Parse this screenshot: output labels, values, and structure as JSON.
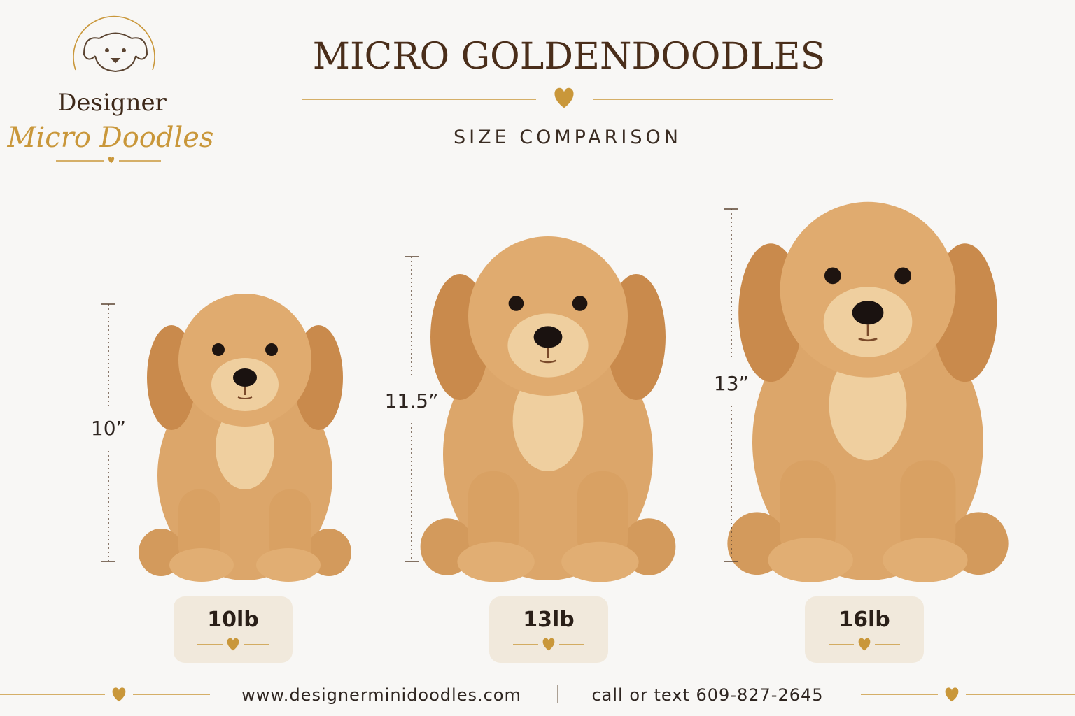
{
  "logo": {
    "line1": "Designer",
    "line2": "Micro Doodles"
  },
  "header": {
    "title": "MICRO GOLDENDOODLES",
    "subtitle": "SIZE COMPARISON"
  },
  "puppies": [
    {
      "height": "10”",
      "weight": "10lb"
    },
    {
      "height": "11.5”",
      "weight": "13lb"
    },
    {
      "height": "13”",
      "weight": "16lb"
    }
  ],
  "footer": {
    "website": "www.designerminidoodles.com",
    "contact": "call or text 609-827-2645"
  }
}
